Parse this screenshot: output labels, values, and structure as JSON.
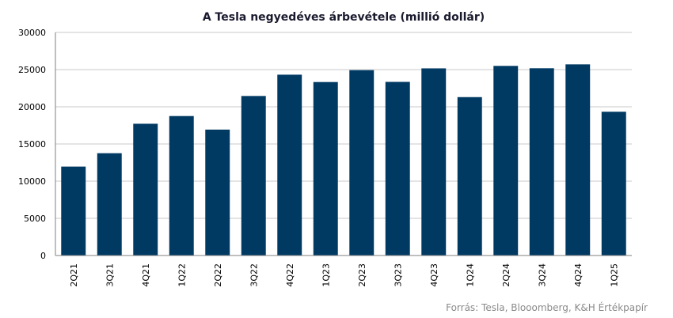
{
  "colors": {
    "bar": "#003a63",
    "gridline": "#c8c8c8",
    "axis": "#7f7f7f",
    "title": "#1a1a2e",
    "source": "#8a8a8a"
  },
  "source_note": "Forrás: Tesla, Blooomberg,  K&H Értékpapír",
  "chart_data": {
    "type": "bar",
    "title": "A Tesla negyedéves árbevétele  (millió dollár)",
    "xlabel": "",
    "ylabel": "",
    "ylim": [
      0,
      30000
    ],
    "yticks": [
      0,
      5000,
      10000,
      15000,
      20000,
      25000,
      30000
    ],
    "grid": true,
    "legend": "none",
    "categories": [
      "2Q21",
      "3Q21",
      "4Q21",
      "1Q22",
      "2Q22",
      "3Q22",
      "4Q22",
      "1Q23",
      "2Q23",
      "3Q23",
      "4Q23",
      "1Q24",
      "2Q24",
      "3Q24",
      "4Q24",
      "1Q25"
    ],
    "values": [
      11958,
      13757,
      17719,
      18756,
      16934,
      21454,
      24318,
      23329,
      24927,
      23350,
      25167,
      21301,
      25500,
      25182,
      25707,
      19335
    ]
  }
}
